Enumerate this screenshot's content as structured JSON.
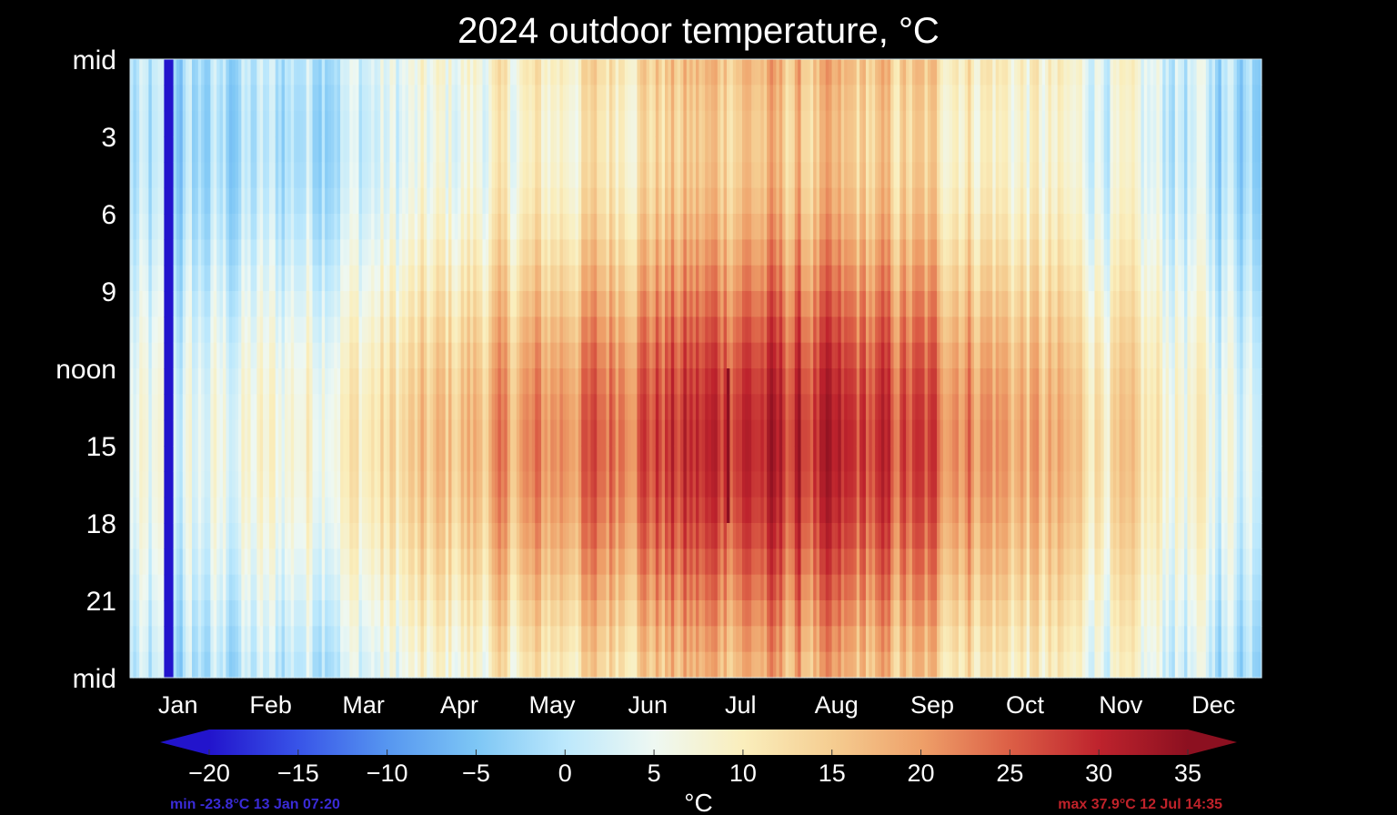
{
  "chart_data": {
    "type": "heatmap",
    "title": "2024 outdoor temperature, °C",
    "x_categories": [
      "Jan",
      "Feb",
      "Mar",
      "Apr",
      "May",
      "Jun",
      "Jul",
      "Aug",
      "Sep",
      "Oct",
      "Nov",
      "Dec"
    ],
    "y_tick_labels": [
      "mid",
      "3",
      "6",
      "9",
      "noon",
      "15",
      "18",
      "21",
      "mid"
    ],
    "y_range_hours": [
      0,
      24
    ],
    "x_range_days": [
      1,
      366
    ],
    "colorbar": {
      "label": "°C",
      "range": [
        -20,
        35
      ],
      "ticks": [
        -20,
        -15,
        -10,
        -5,
        0,
        5,
        10,
        15,
        20,
        25,
        30,
        35
      ],
      "tick_labels": [
        "−20",
        "−15",
        "−10",
        "−5",
        "0",
        "5",
        "10",
        "15",
        "20",
        "25",
        "30",
        "35"
      ],
      "extend": "both",
      "colors": {
        "cold": "#2a14cc",
        "cool": "#7fc7f5",
        "mild": "#f2f6ee",
        "warm": "#f0b070",
        "hot": "#c02626",
        "hottest": "#8c1020"
      }
    },
    "min_annotation": "min -23.8°C  13 Jan 07:20",
    "max_annotation": "max 37.9°C  12 Jul 14:35",
    "monthly_mean_temperature": [
      0,
      3,
      6,
      11,
      15,
      20,
      23,
      21,
      19,
      13,
      8,
      3
    ],
    "daily_range": [
      6,
      8,
      9,
      11,
      13,
      14,
      14,
      14,
      13,
      11,
      8,
      6
    ],
    "min_event": {
      "date": "13 Jan",
      "time": "07:20",
      "value": -23.8
    },
    "max_event": {
      "date": "12 Jul",
      "time": "14:35",
      "value": 37.9
    },
    "grid": false
  }
}
